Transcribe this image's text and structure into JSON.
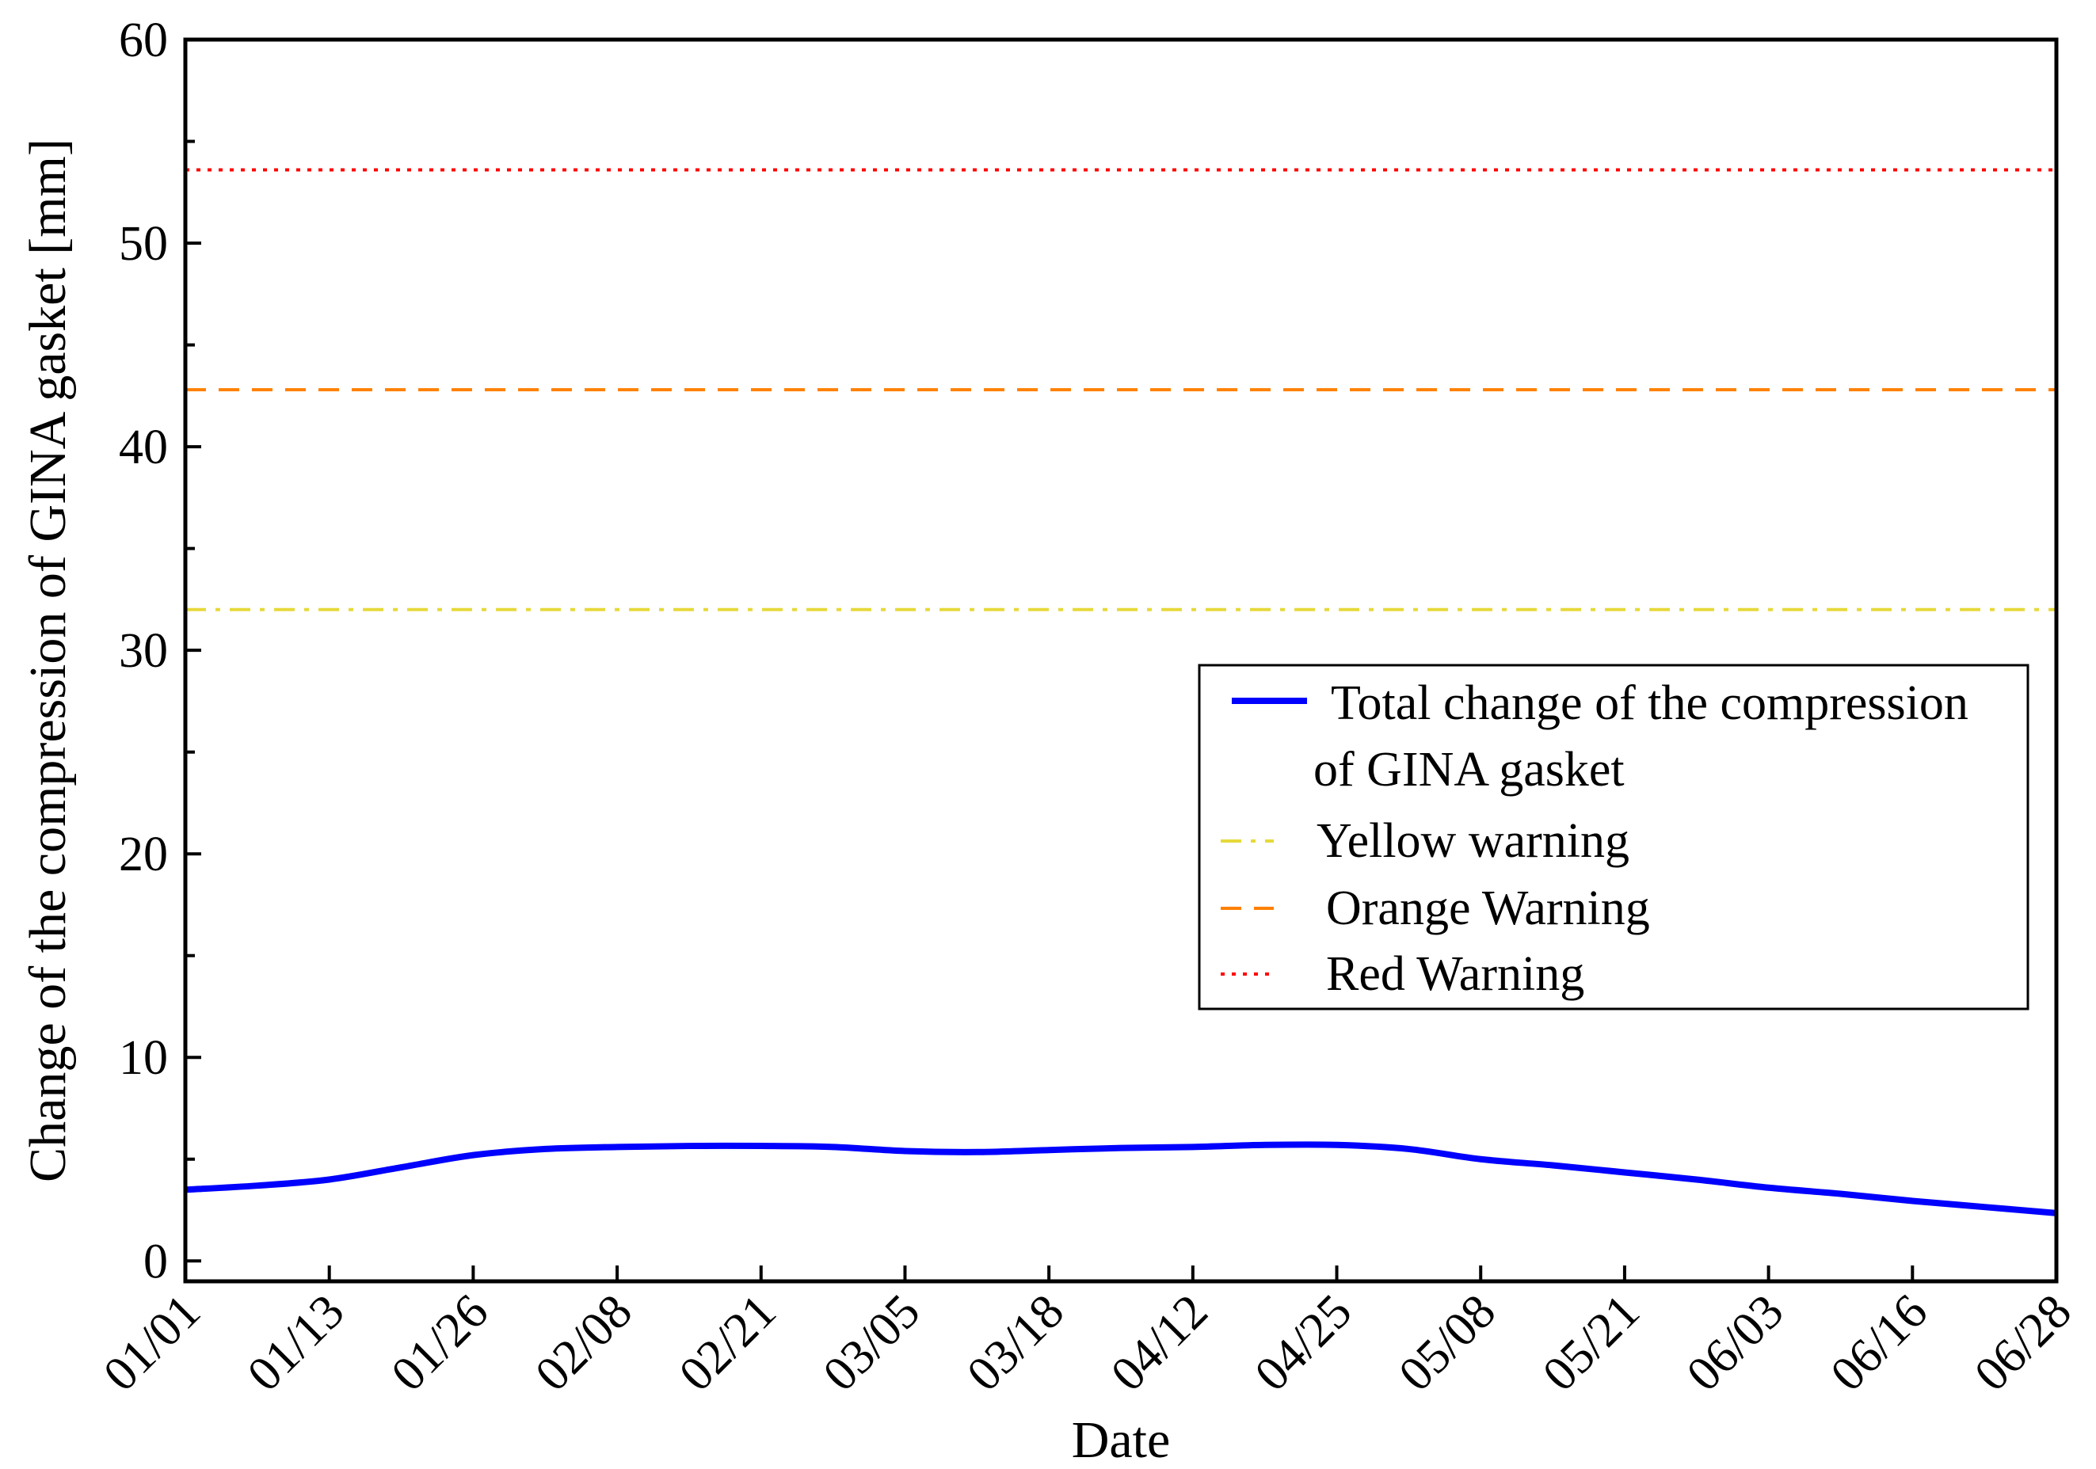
{
  "chart_data": {
    "type": "line",
    "xlabel": "Date",
    "ylabel": "Change of the compression of GINA gasket [mm]",
    "ylim": [
      -1,
      60
    ],
    "yticks": [
      0,
      10,
      20,
      30,
      40,
      50,
      60
    ],
    "x_tick_labels": [
      "01/01",
      "01/13",
      "01/26",
      "02/08",
      "02/21",
      "03/05",
      "03/18",
      "04/12",
      "04/25",
      "05/08",
      "05/21",
      "06/03",
      "06/16",
      "06/28"
    ],
    "series": [
      {
        "name": "Total change of the compression of GINA gasket",
        "legend_lines": [
          "Total change of the compression",
          "of GINA gasket"
        ],
        "style": "solid",
        "color": "#0000ff",
        "x": [
          0,
          0.5,
          1,
          1.5,
          2,
          2.5,
          3,
          3.5,
          4,
          4.5,
          5,
          5.5,
          6,
          6.5,
          7,
          7.5,
          8,
          8.5,
          9,
          9.5,
          10,
          10.5,
          11,
          11.5,
          12,
          12.5,
          13
        ],
        "values": [
          3.5,
          3.7,
          4.0,
          4.6,
          5.2,
          5.5,
          5.6,
          5.65,
          5.65,
          5.6,
          5.4,
          5.35,
          5.45,
          5.55,
          5.6,
          5.7,
          5.7,
          5.5,
          5.0,
          4.7,
          4.35,
          4.0,
          3.6,
          3.3,
          2.95,
          2.65,
          2.35
        ]
      },
      {
        "name": "Yellow warning",
        "style": "dash-dot",
        "color": "#e6d93a",
        "x": [
          0,
          13
        ],
        "values": [
          32.0,
          32.0
        ]
      },
      {
        "name": "Orange Warning",
        "style": "dashed",
        "color": "#ff8000",
        "x": [
          0,
          13
        ],
        "values": [
          42.8,
          42.8
        ]
      },
      {
        "name": "Red Warning",
        "style": "dotted",
        "color": "#ff0000",
        "x": [
          0,
          13
        ],
        "values": [
          53.6,
          53.6
        ]
      }
    ],
    "legend_position": "center-right"
  }
}
